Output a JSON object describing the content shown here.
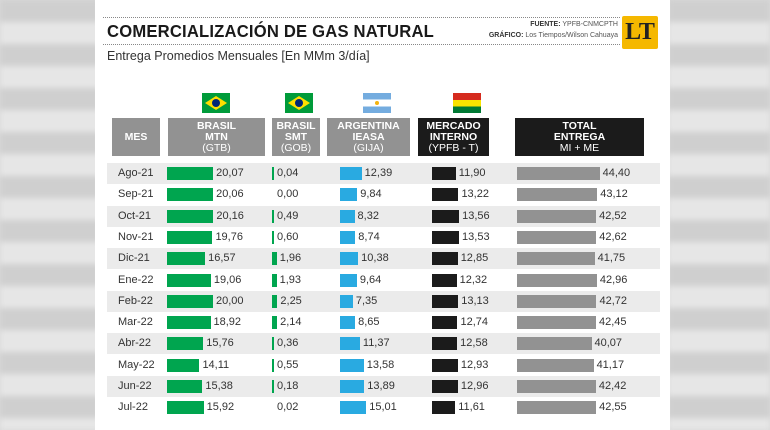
{
  "header": {
    "title": "COMERCIALIZACIÓN DE GAS NATURAL",
    "subtitle": "Entrega Promedios Mensuales [En MMm 3/día]",
    "source_label": "FUENTE:",
    "source": "YPFB-CNMCPTH",
    "graphic_label": "GRÁFICO:",
    "graphic": "Los Tiempos/Wilson Cahuaya",
    "logo": "LT"
  },
  "columns": [
    {
      "l1": "MES",
      "l2": "",
      "l3": ""
    },
    {
      "l1": "BRASIL",
      "l2": "MTN",
      "l3": "(GTB)"
    },
    {
      "l1": "BRASIL",
      "l2": "SMT",
      "l3": "(GOB)"
    },
    {
      "l1": "ARGENTINA",
      "l2": "IEASA",
      "l3": "(GIJA)"
    },
    {
      "l1": "MERCADO",
      "l2": "INTERNO",
      "l3": "(YPFB - T)"
    },
    {
      "l1": "TOTAL",
      "l2": "ENTREGA",
      "l3": "MI + ME"
    }
  ],
  "colors": {
    "brasil": "#00a54f",
    "argentina": "#29aae1",
    "interno": "#1b1b1b",
    "total": "#929292"
  },
  "rows": [
    {
      "mes": "Ago-21",
      "mtn": "20,07",
      "smt": "0,04",
      "arg": "12,39",
      "mi": "11,90",
      "total": "44,40"
    },
    {
      "mes": "Sep-21",
      "mtn": "20,06",
      "smt": "0,00",
      "arg": "9,84",
      "mi": "13,22",
      "total": "43,12"
    },
    {
      "mes": "Oct-21",
      "mtn": "20,16",
      "smt": "0,49",
      "arg": "8,32",
      "mi": "13,56",
      "total": "42,52"
    },
    {
      "mes": "Nov-21",
      "mtn": "19,76",
      "smt": "0,60",
      "arg": "8,74",
      "mi": "13,53",
      "total": "42,62"
    },
    {
      "mes": "Dic-21",
      "mtn": "16,57",
      "smt": "1,96",
      "arg": "10,38",
      "mi": "12,85",
      "total": "41,75"
    },
    {
      "mes": "Ene-22",
      "mtn": "19,06",
      "smt": "1,93",
      "arg": "9,64",
      "mi": "12,32",
      "total": "42,96"
    },
    {
      "mes": "Feb-22",
      "mtn": "20,00",
      "smt": "2,25",
      "arg": "7,35",
      "mi": "13,13",
      "total": "42,72"
    },
    {
      "mes": "Mar-22",
      "mtn": "18,92",
      "smt": "2,14",
      "arg": "8,65",
      "mi": "12,74",
      "total": "42,45"
    },
    {
      "mes": "Abr-22",
      "mtn": "15,76",
      "smt": "0,36",
      "arg": "11,37",
      "mi": "12,58",
      "total": "40,07"
    },
    {
      "mes": "May-22",
      "mtn": "14,11",
      "smt": "0,55",
      "arg": "13,58",
      "mi": "12,93",
      "total": "41,17"
    },
    {
      "mes": "Jun-22",
      "mtn": "15,38",
      "smt": "0,18",
      "arg": "13,89",
      "mi": "12,96",
      "total": "42,42"
    },
    {
      "mes": "Jul-22",
      "mtn": "15,92",
      "smt": "0,02",
      "arg": "15,01",
      "mi": "11,61",
      "total": "42,55"
    }
  ]
}
